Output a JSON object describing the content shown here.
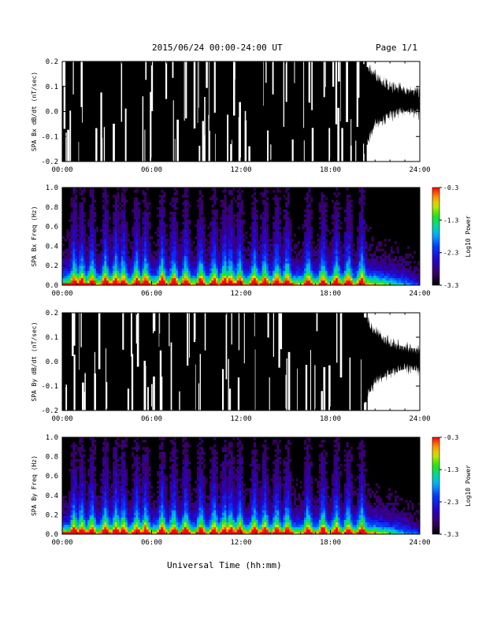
{
  "header": {
    "title": "2015/06/24  00:00-24:00 UT",
    "page": "Page 1/1"
  },
  "xaxis": {
    "label": "Universal Time (hh:mm)",
    "ticks": [
      "00:00",
      "06:00",
      "12:00",
      "18:00",
      "24:00"
    ],
    "range_hours": [
      0,
      24
    ]
  },
  "chart_data": [
    {
      "type": "line",
      "ylabel": "SPA Bx dB/dt (nT/sec)",
      "yticks": [
        "0.2",
        "0.1",
        "0.0",
        "-0.1",
        "-0.2"
      ],
      "ylim": [
        -0.2,
        0.2
      ],
      "x": [
        0,
        1,
        2,
        3,
        4,
        5,
        6,
        7,
        8,
        9,
        10,
        11,
        12,
        13,
        14,
        15,
        16,
        17,
        18,
        19,
        20,
        21,
        22,
        23,
        24
      ],
      "series": [
        {
          "max": [
            0.2,
            0.2,
            0.2,
            0.2,
            0.2,
            0.2,
            0.2,
            0.2,
            0.2,
            0.2,
            0.2,
            0.2,
            0.2,
            0.2,
            0.2,
            0.2,
            0.2,
            0.2,
            0.2,
            0.2,
            0.2,
            0.15,
            0.1,
            0.09,
            0.08
          ],
          "min": [
            -0.2,
            -0.2,
            -0.2,
            -0.2,
            -0.2,
            -0.2,
            -0.2,
            -0.2,
            -0.2,
            -0.2,
            -0.2,
            -0.2,
            -0.2,
            -0.2,
            -0.2,
            -0.2,
            -0.2,
            -0.2,
            -0.2,
            -0.2,
            -0.2,
            -0.05,
            -0.02,
            0.0,
            -0.01
          ]
        }
      ]
    },
    {
      "type": "heatmap",
      "ylabel": "SPA Bx Freq (Hz)",
      "yticks": [
        "1.0",
        "0.8",
        "0.6",
        "0.4",
        "0.2",
        "0.0"
      ],
      "ylim": [
        0.0,
        1.0
      ],
      "colorbar": {
        "label": "Log10 Power",
        "ticks": [
          "-0.3",
          "-1.3",
          "-2.3",
          "-3.3"
        ],
        "range": [
          -3.3,
          -0.3
        ]
      },
      "bursts_hours": [
        0.8,
        1.3,
        2.0,
        2.9,
        3.6,
        4.1,
        5.0,
        5.6,
        6.7,
        7.5,
        8.3,
        9.3,
        10.2,
        10.9,
        11.3,
        11.9,
        12.9,
        13.6,
        14.4,
        15.1,
        16.5,
        17.5,
        18.4,
        19.2,
        20.1
      ]
    },
    {
      "type": "line",
      "ylabel": "SPA By dB/dt (nT/sec)",
      "yticks": [
        "0.2",
        "0.1",
        "0.0",
        "-0.1",
        "-0.2"
      ],
      "ylim": [
        -0.2,
        0.2
      ],
      "x": [
        0,
        1,
        2,
        3,
        4,
        5,
        6,
        7,
        8,
        9,
        10,
        11,
        12,
        13,
        14,
        15,
        16,
        17,
        18,
        19,
        20,
        21,
        22,
        23,
        24
      ],
      "series": [
        {
          "max": [
            0.2,
            0.2,
            0.2,
            0.2,
            0.2,
            0.2,
            0.2,
            0.2,
            0.2,
            0.2,
            0.2,
            0.2,
            0.2,
            0.2,
            0.2,
            0.2,
            0.2,
            0.2,
            0.2,
            0.2,
            0.2,
            0.13,
            0.08,
            0.06,
            0.05
          ],
          "min": [
            -0.2,
            -0.2,
            -0.2,
            -0.2,
            -0.2,
            -0.2,
            -0.2,
            -0.2,
            -0.2,
            -0.2,
            -0.2,
            -0.2,
            -0.2,
            -0.2,
            -0.2,
            -0.2,
            -0.2,
            -0.2,
            -0.2,
            -0.2,
            -0.2,
            -0.08,
            -0.05,
            -0.03,
            -0.04
          ]
        }
      ]
    },
    {
      "type": "heatmap",
      "ylabel": "SPA By Freq (Hz)",
      "yticks": [
        "1.0",
        "0.8",
        "0.6",
        "0.4",
        "0.2",
        "0.0"
      ],
      "ylim": [
        0.0,
        1.0
      ],
      "colorbar": {
        "label": "Log10 Power",
        "ticks": [
          "-0.3",
          "-1.3",
          "-2.3",
          "-3.3"
        ],
        "range": [
          -3.3,
          -0.3
        ]
      },
      "bursts_hours": [
        0.8,
        1.3,
        2.0,
        2.9,
        3.6,
        4.1,
        5.0,
        5.6,
        6.7,
        7.5,
        8.3,
        9.3,
        10.2,
        10.9,
        11.3,
        11.9,
        12.9,
        13.6,
        14.4,
        15.1,
        16.5,
        17.5,
        18.4,
        19.2,
        20.1
      ]
    }
  ]
}
